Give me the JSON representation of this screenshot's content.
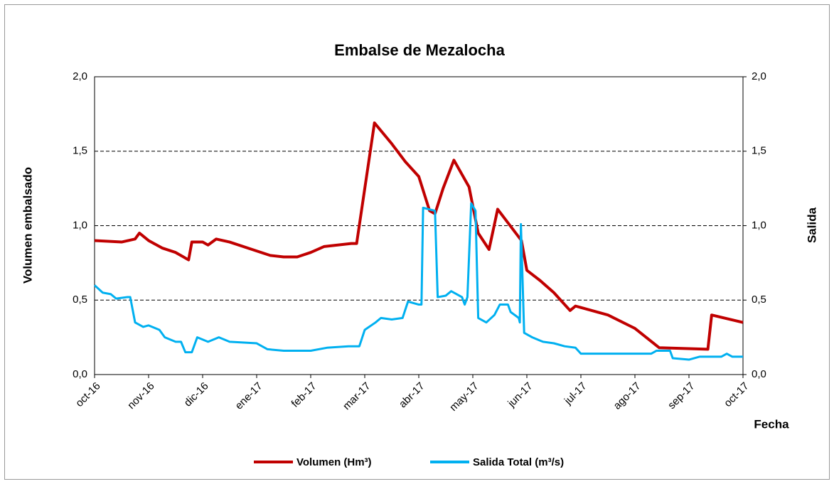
{
  "chart_data": {
    "type": "line",
    "title": "Embalse de Mezalocha",
    "y_label": "Volumen embalsado",
    "y2_label": "Salida",
    "x_label": "Fecha",
    "xlim": [
      0,
      12
    ],
    "xticks": [
      {
        "value": 0,
        "label": "oct-16"
      },
      {
        "value": 1,
        "label": "nov-16"
      },
      {
        "value": 2,
        "label": "dic-16"
      },
      {
        "value": 3,
        "label": "ene-17"
      },
      {
        "value": 4,
        "label": "feb-17"
      },
      {
        "value": 5,
        "label": "mar-17"
      },
      {
        "value": 6,
        "label": "abr-17"
      },
      {
        "value": 7,
        "label": "may-17"
      },
      {
        "value": 8,
        "label": "jun-17"
      },
      {
        "value": 9,
        "label": "jul-17"
      },
      {
        "value": 10,
        "label": "ago-17"
      },
      {
        "value": 11,
        "label": "sep-17"
      },
      {
        "value": 12,
        "label": "oct-17"
      }
    ],
    "ylim": [
      0,
      2
    ],
    "yticks": [
      {
        "value": 0,
        "label": "0,0"
      },
      {
        "value": 0.5,
        "label": "0,5"
      },
      {
        "value": 1,
        "label": "1,0"
      },
      {
        "value": 1.5,
        "label": "1,5"
      },
      {
        "value": 2,
        "label": "2,0"
      }
    ],
    "y2lim": [
      0,
      2
    ],
    "y2ticks": [
      {
        "value": 0,
        "label": "0,0"
      },
      {
        "value": 0.5,
        "label": "0,5"
      },
      {
        "value": 1,
        "label": "1,0"
      },
      {
        "value": 1.5,
        "label": "1,5"
      },
      {
        "value": 2,
        "label": "2,0"
      }
    ],
    "grid": true,
    "legend": "bottom",
    "series": [
      {
        "name": "Volumen (Hm³)",
        "color": "#c00000",
        "x": [
          0,
          0.5,
          0.75,
          0.83,
          1.0,
          1.25,
          1.5,
          1.74,
          1.8,
          2.0,
          2.1,
          2.25,
          2.5,
          3.0,
          3.25,
          3.5,
          3.75,
          4.0,
          4.25,
          4.5,
          4.75,
          4.85,
          5.18,
          5.5,
          5.75,
          6.0,
          6.2,
          6.3,
          6.45,
          6.65,
          6.93,
          7.1,
          7.3,
          7.46,
          7.9,
          8.0,
          8.25,
          8.5,
          8.8,
          8.9,
          9.0,
          9.5,
          10.0,
          10.45,
          11.35,
          11.42,
          12.0
        ],
        "values": [
          0.9,
          0.89,
          0.91,
          0.95,
          0.9,
          0.85,
          0.82,
          0.77,
          0.89,
          0.89,
          0.87,
          0.91,
          0.89,
          0.83,
          0.8,
          0.79,
          0.79,
          0.82,
          0.86,
          0.87,
          0.88,
          0.88,
          1.69,
          1.55,
          1.43,
          1.33,
          1.1,
          1.08,
          1.25,
          1.44,
          1.26,
          0.95,
          0.84,
          1.11,
          0.9,
          0.7,
          0.63,
          0.55,
          0.43,
          0.46,
          0.45,
          0.4,
          0.31,
          0.18,
          0.17,
          0.4,
          0.35
        ]
      },
      {
        "name": "Salida Total (m³/s)",
        "color": "#00b0f0",
        "axis": "y2",
        "x": [
          0,
          0.15,
          0.3,
          0.4,
          0.6,
          0.66,
          0.75,
          0.9,
          1.0,
          1.2,
          1.3,
          1.5,
          1.6,
          1.68,
          1.8,
          1.9,
          2.1,
          2.3,
          2.5,
          3.0,
          3.2,
          3.5,
          4.0,
          4.3,
          4.7,
          4.9,
          5.0,
          5.2,
          5.3,
          5.5,
          5.7,
          5.8,
          6.0,
          6.05,
          6.08,
          6.3,
          6.35,
          6.5,
          6.6,
          6.8,
          6.85,
          6.9,
          6.97,
          7.05,
          7.1,
          7.25,
          7.4,
          7.5,
          7.65,
          7.7,
          7.85,
          7.87,
          7.89,
          7.95,
          8.1,
          8.3,
          8.5,
          8.7,
          8.9,
          9.0,
          10.3,
          10.4,
          10.65,
          10.7,
          11.0,
          11.2,
          11.6,
          11.7,
          11.8,
          12.0
        ],
        "values": [
          0.6,
          0.55,
          0.54,
          0.51,
          0.52,
          0.52,
          0.35,
          0.32,
          0.33,
          0.3,
          0.25,
          0.22,
          0.22,
          0.15,
          0.15,
          0.25,
          0.22,
          0.25,
          0.22,
          0.21,
          0.17,
          0.16,
          0.16,
          0.18,
          0.19,
          0.19,
          0.3,
          0.35,
          0.38,
          0.37,
          0.38,
          0.49,
          0.47,
          0.47,
          1.12,
          1.1,
          0.52,
          0.53,
          0.56,
          0.52,
          0.47,
          0.52,
          1.15,
          1.1,
          0.38,
          0.35,
          0.4,
          0.47,
          0.47,
          0.42,
          0.38,
          0.35,
          1.01,
          0.28,
          0.25,
          0.22,
          0.21,
          0.19,
          0.18,
          0.14,
          0.14,
          0.16,
          0.16,
          0.11,
          0.1,
          0.12,
          0.12,
          0.14,
          0.12,
          0.12
        ]
      }
    ]
  }
}
